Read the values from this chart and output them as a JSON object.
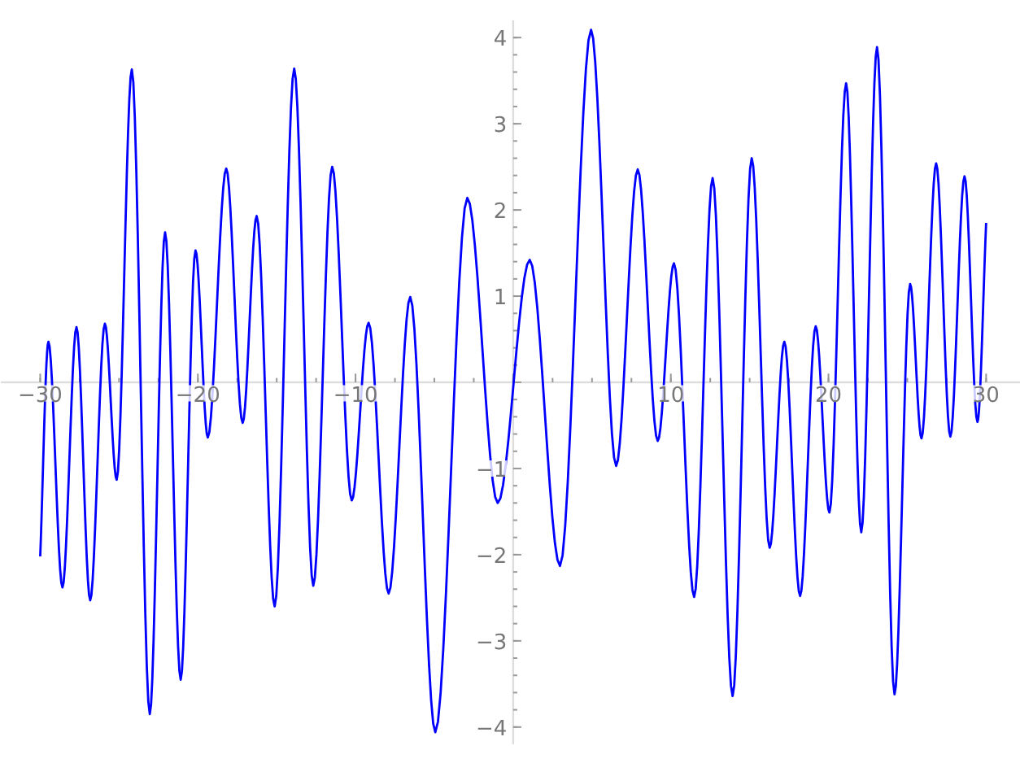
{
  "chart_data": {
    "type": "line",
    "x": [
      -30,
      -29.48,
      -28.59,
      -27.7,
      -26.83,
      -25.9,
      -25.15,
      -24.19,
      -23.05,
      -22.08,
      -21.09,
      -20.15,
      -19.37,
      -18.2,
      -17.16,
      -16.27,
      -15.13,
      -13.89,
      -12.68,
      -11.48,
      -10.24,
      -9.17,
      -7.9,
      -6.53,
      -4.94,
      -2.91,
      -0.98,
      1.05,
      2.97,
      4.94,
      6.53,
      7.9,
      9.17,
      10.2,
      11.48,
      12.65,
      13.92,
      15.13,
      16.27,
      17.2,
      18.2,
      19.19,
      20.06,
      21.12,
      22.08,
      23.08,
      24.19,
      25.18,
      25.9,
      26.83,
      27.73,
      28.63,
      29.45,
      30
    ],
    "series": [
      {
        "color": "#0000ff",
        "values": [
          -2.02,
          0.47,
          -2.38,
          0.64,
          -2.53,
          0.68,
          -1.13,
          3.63,
          -3.85,
          1.74,
          -3.45,
          1.53,
          -0.64,
          2.48,
          -0.47,
          1.93,
          -2.6,
          3.64,
          -2.36,
          2.5,
          -1.37,
          0.69,
          -2.45,
          0.99,
          -4.06,
          2.14,
          -1.4,
          1.42,
          -2.13,
          4.09,
          -0.97,
          2.47,
          -0.68,
          1.38,
          -2.49,
          2.37,
          -3.64,
          2.6,
          -1.92,
          0.47,
          -2.48,
          0.65,
          -1.51,
          3.47,
          -1.74,
          3.89,
          -3.62,
          1.14,
          -0.65,
          2.54,
          -0.63,
          2.39,
          -0.46,
          1.85
        ]
      }
    ],
    "xlim": [
      -32.5,
      32.2
    ],
    "ylim": [
      -4.2,
      4.2
    ],
    "xticks": [
      {
        "value": -30,
        "label": "−30"
      },
      {
        "value": -20,
        "label": "−20"
      },
      {
        "value": -10,
        "label": "−10"
      },
      {
        "value": 0,
        "label": null
      },
      10,
      20,
      30
    ],
    "yticks": [
      {
        "value": -4,
        "label": "−4"
      },
      {
        "value": -3,
        "label": "−3"
      },
      {
        "value": -2,
        "label": "−2"
      },
      {
        "value": -1,
        "label": "−1"
      },
      {
        "value": 0,
        "label": null
      },
      1,
      2,
      3,
      4
    ],
    "grid": false,
    "marker": "none",
    "line_style": "solid"
  }
}
